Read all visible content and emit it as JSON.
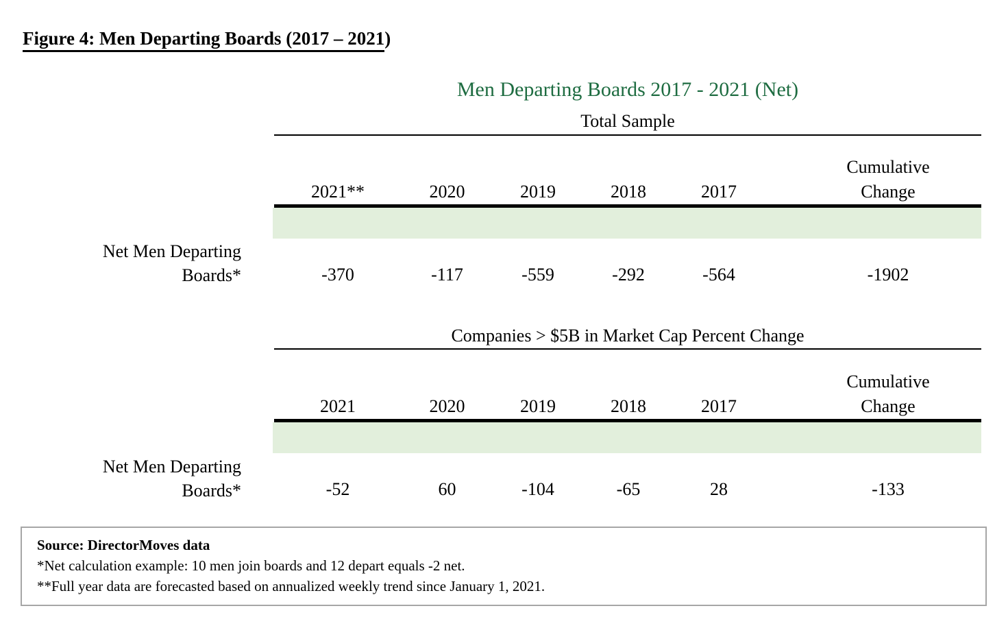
{
  "figure": {
    "title_underlined": "Figure 4: Men Departing Boards (2017 – 2021",
    "title_suffix": ")"
  },
  "chart": {
    "title": "Men Departing Boards 2017 - 2021 (Net)",
    "title_color": "#1E6C41",
    "band_color": "#E2EFDC",
    "row_label_line1": "Net Men Departing",
    "row_label_line2": "Boards*",
    "sections": [
      {
        "heading": "Total Sample",
        "columns": [
          "2021**",
          "2020",
          "2019",
          "2018",
          "2017"
        ],
        "cumulative_header": [
          "Cumulative",
          "Change"
        ],
        "values": [
          "-370",
          "-117",
          "-559",
          "-292",
          "-564"
        ],
        "cumulative_value": "-1902"
      },
      {
        "heading": "Companies > $5B in Market Cap Percent Change",
        "columns": [
          "2021",
          "2020",
          "2019",
          "2018",
          "2017"
        ],
        "cumulative_header": [
          "Cumulative",
          "Change"
        ],
        "values": [
          "-52",
          "60",
          "-104",
          "-65",
          "28"
        ],
        "cumulative_value": "-133"
      }
    ]
  },
  "footnotes": {
    "source": "Source: DirectorMoves data",
    "note1": "*Net calculation example: 10 men join boards and 12 depart equals -2 net.",
    "note2": "**Full year data are forecasted based on annualized weekly trend since January 1, 2021."
  },
  "chart_data": [
    {
      "type": "table",
      "title": "Men Departing Boards 2017 - 2021 (Net)",
      "subtitle": "Total Sample",
      "categories": [
        "2021**",
        "2020",
        "2019",
        "2018",
        "2017",
        "Cumulative Change"
      ],
      "series": [
        {
          "name": "Net Men Departing Boards*",
          "values": [
            -370,
            -117,
            -559,
            -292,
            -564,
            -1902
          ]
        }
      ]
    },
    {
      "type": "table",
      "title": "Men Departing Boards 2017 - 2021 (Net)",
      "subtitle": "Companies > $5B in Market Cap Percent Change",
      "categories": [
        "2021",
        "2020",
        "2019",
        "2018",
        "2017",
        "Cumulative Change"
      ],
      "series": [
        {
          "name": "Net Men Departing Boards*",
          "values": [
            -52,
            60,
            -104,
            -65,
            28,
            -133
          ]
        }
      ]
    }
  ]
}
